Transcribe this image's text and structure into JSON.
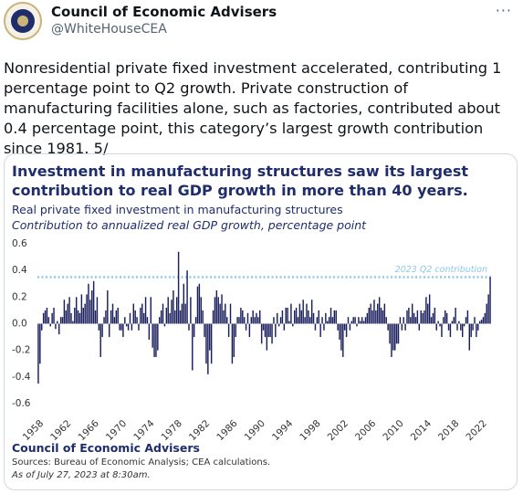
{
  "user": {
    "name": "Council of Economic Advisers",
    "handle": "@WhiteHouseCEA"
  },
  "text": "Nonresidential private fixed investment accelerated, contributing 1 percentage point to Q2 growth. Private construction of manufacturing facilities alone, such as factories, contributed about 0.4 percentage point, this category’s largest growth contribution since 1981. 5/",
  "chart_data": {
    "type": "bar",
    "title": "Investment in manufacturing structures saw its largest contribution to real GDP growth in more than 40 years.",
    "subtitle": "Real private fixed investment in manufacturing structures",
    "ylabel": "Contribution to annualized real GDP growth, percentage point",
    "footer": "Council of Economic Advisers",
    "source": "Sources: Bureau of Economic Analysis; CEA calculations.",
    "date_note": "As of July 27, 2023 at 8:30am.",
    "color": "#1a1f5c",
    "grid": false,
    "ylim": [
      -0.6,
      0.6
    ],
    "yticks": [
      -0.6,
      -0.4,
      -0.2,
      {
        "value": 0,
        "label": "0.0"
      },
      0.2,
      0.4,
      0.6
    ],
    "reference_line": {
      "value": 0.35,
      "label": "2023 Q2 contribution",
      "color": "#8ec8e8"
    },
    "categories": [
      "1958",
      null,
      null,
      null,
      null,
      null,
      null,
      null,
      null,
      null,
      null,
      null,
      null,
      null,
      null,
      null,
      "1962",
      null,
      null,
      null,
      null,
      null,
      null,
      null,
      null,
      null,
      null,
      null,
      null,
      null,
      null,
      null,
      "1966",
      null,
      null,
      null,
      null,
      null,
      null,
      null,
      null,
      null,
      null,
      null,
      null,
      null,
      null,
      null,
      "1970",
      null,
      null,
      null,
      null,
      null,
      null,
      null,
      null,
      null,
      null,
      null,
      null,
      null,
      null,
      null,
      "1974",
      null,
      null,
      null,
      null,
      null,
      null,
      null,
      null,
      null,
      null,
      null,
      null,
      null,
      null,
      null,
      "1978",
      null,
      null,
      null,
      null,
      null,
      null,
      null,
      null,
      null,
      null,
      null,
      null,
      null,
      null,
      null,
      "1982",
      null,
      null,
      null,
      null,
      null,
      null,
      null,
      null,
      null,
      null,
      null,
      null,
      null,
      null,
      null,
      "1986",
      null,
      null,
      null,
      null,
      null,
      null,
      null,
      null,
      null,
      null,
      null,
      null,
      null,
      null,
      null,
      "1990",
      null,
      null,
      null,
      null,
      null,
      null,
      null,
      null,
      null,
      null,
      null,
      null,
      null,
      null,
      null,
      "1994",
      null,
      null,
      null,
      null,
      null,
      null,
      null,
      null,
      null,
      null,
      null,
      null,
      null,
      null,
      null,
      "1998",
      null,
      null,
      null,
      null,
      null,
      null,
      null,
      null,
      null,
      null,
      null,
      null,
      null,
      null,
      null,
      "2002",
      null,
      null,
      null,
      null,
      null,
      null,
      null,
      null,
      null,
      null,
      null,
      null,
      null,
      null,
      null,
      "2006",
      null,
      null,
      null,
      null,
      null,
      null,
      null,
      null,
      null,
      null,
      null,
      null,
      null,
      null,
      null,
      "2010",
      null,
      null,
      null,
      null,
      null,
      null,
      null,
      null,
      null,
      null,
      null,
      null,
      null,
      null,
      null,
      "2014",
      null,
      null,
      null,
      null,
      null,
      null,
      null,
      null,
      null,
      null,
      null,
      null,
      null,
      null,
      null,
      "2018",
      null,
      null,
      null,
      null,
      null,
      null,
      null,
      null,
      null,
      null,
      null,
      null,
      null,
      null,
      null,
      "2022",
      null,
      null,
      null,
      null,
      null
    ],
    "values": [
      -0.45,
      -0.3,
      -0.05,
      0.08,
      0.1,
      0.12,
      0.05,
      -0.02,
      0.08,
      0.12,
      -0.04,
      0.02,
      -0.08,
      0.05,
      0.05,
      0.18,
      0.1,
      0.15,
      0.2,
      0.08,
      0.02,
      0.12,
      0.2,
      0.1,
      0.08,
      0.22,
      0.12,
      0.15,
      0.22,
      0.3,
      0.18,
      0.25,
      0.32,
      0.1,
      0.2,
      -0.05,
      -0.25,
      -0.1,
      0.05,
      0.1,
      0.25,
      -0.1,
      0.1,
      0.15,
      0.05,
      0.1,
      0.12,
      -0.05,
      -0.05,
      -0.1,
      0.05,
      -0.02,
      -0.05,
      0.08,
      -0.05,
      0.15,
      0.1,
      0.05,
      -0.05,
      0.12,
      0.15,
      0.08,
      0.2,
      0.05,
      -0.12,
      0.2,
      -0.18,
      -0.25,
      -0.25,
      -0.2,
      0.05,
      0.1,
      0.15,
      -0.02,
      0.12,
      0.2,
      0.08,
      0.18,
      0.25,
      0.1,
      0.2,
      0.54,
      0.1,
      0.15,
      0.3,
      0.15,
      0.4,
      -0.05,
      0.2,
      -0.35,
      -0.1,
      0.05,
      0.28,
      0.3,
      0.2,
      0.1,
      -0.1,
      -0.3,
      -0.38,
      -0.2,
      -0.3,
      0.1,
      0.2,
      0.25,
      0.2,
      0.15,
      0.22,
      0.1,
      0.15,
      0.05,
      -0.1,
      0.15,
      -0.3,
      -0.25,
      -0.1,
      0.05,
      0.05,
      0.12,
      0.1,
      0.05,
      -0.05,
      0.08,
      -0.1,
      0.05,
      0.1,
      0.05,
      0.08,
      0.05,
      0.1,
      -0.15,
      -0.05,
      -0.1,
      -0.2,
      -0.1,
      -0.1,
      -0.15,
      0.05,
      -0.1,
      0.08,
      -0.02,
      0.05,
      0.1,
      -0.05,
      0.12,
      0.12,
      0.02,
      0.15,
      -0.02,
      0.1,
      0.12,
      0.05,
      0.15,
      0.1,
      0.18,
      0.05,
      0.15,
      0.1,
      0.05,
      0.18,
      0.08,
      -0.05,
      0.05,
      0.1,
      -0.1,
      0.05,
      -0.05,
      0.08,
      0.02,
      0.05,
      0.12,
      0.05,
      0.1,
      0.1,
      -0.05,
      -0.12,
      -0.2,
      -0.25,
      -0.05,
      -0.1,
      0.05,
      -0.05,
      0.02,
      0.05,
      0.05,
      -0.02,
      0.05,
      0.02,
      0.05,
      0.02,
      0.05,
      0.08,
      0.12,
      0.15,
      0.1,
      0.18,
      0.1,
      0.15,
      0.2,
      0.12,
      0.1,
      0.15,
      0.05,
      -0.05,
      -0.15,
      -0.25,
      -0.2,
      -0.2,
      -0.15,
      -0.15,
      0.05,
      -0.05,
      0.05,
      -0.05,
      0.1,
      0.12,
      0.05,
      0.15,
      0.08,
      0.05,
      0.1,
      -0.05,
      0.1,
      0.08,
      0.1,
      0.2,
      0.15,
      0.22,
      0.05,
      0.08,
      0.12,
      -0.05,
      0.02,
      -0.02,
      -0.1,
      0.05,
      0.1,
      0.08,
      -0.05,
      -0.1,
      0.02,
      0.05,
      0.12,
      -0.05,
      0.02,
      -0.05,
      -0.1,
      -0.02,
      0.05,
      0.1,
      -0.2,
      -0.1,
      -0.05,
      0.05,
      -0.1,
      -0.05,
      0.02,
      0.03,
      0.05,
      0.08,
      0.15,
      0.22,
      0.35
    ]
  }
}
